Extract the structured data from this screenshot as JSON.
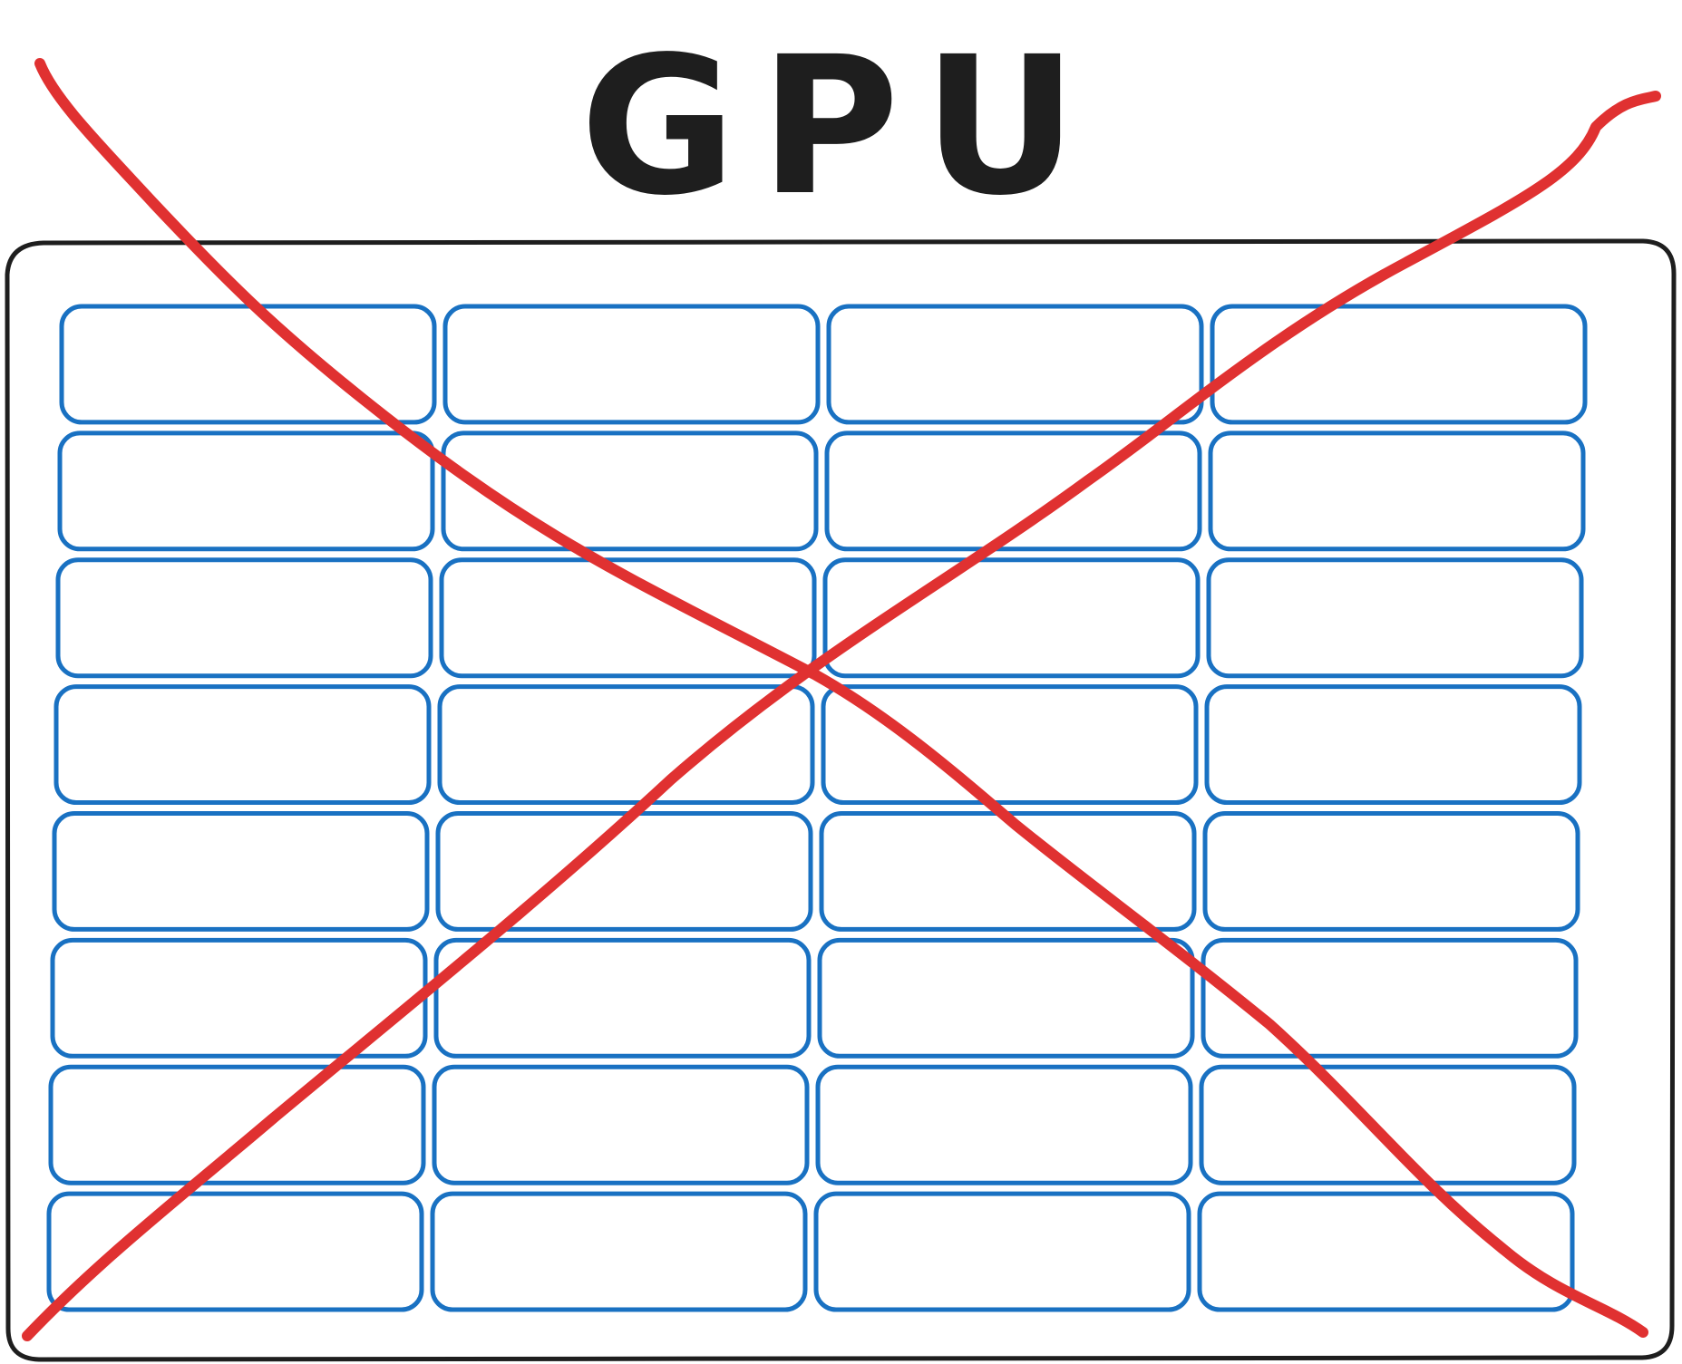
{
  "title": "GPU",
  "grid": {
    "rows": 8,
    "columns": 4
  },
  "colors": {
    "ink": "#1e1e1e",
    "core_outline": "#1971c2",
    "cross": "#e03131",
    "background": "#ffffff"
  },
  "crossed_out": true
}
